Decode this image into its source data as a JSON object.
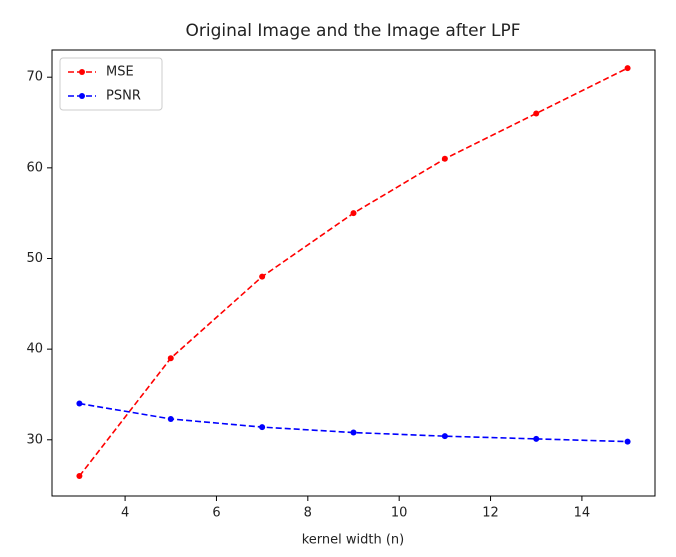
{
  "chart_data": {
    "type": "line",
    "title": "Original Image and the Image after LPF",
    "x_label": "kernel width (n)",
    "x": [
      3,
      5,
      7,
      9,
      11,
      13,
      15
    ],
    "series": [
      {
        "name": "MSE",
        "color": "#ff0000",
        "values": [
          26,
          39,
          48,
          55,
          61,
          66,
          71
        ]
      },
      {
        "name": "PSNR",
        "color": "#0000ff",
        "values": [
          34.0,
          32.3,
          31.4,
          30.8,
          30.4,
          30.1,
          29.8
        ]
      }
    ],
    "xlim": [
      2.4,
      15.6
    ],
    "xticks": [
      4,
      6,
      8,
      10,
      12,
      14
    ],
    "ylim": [
      23.8,
      73.0
    ],
    "yticks": [
      30,
      40,
      50,
      60,
      70
    ],
    "legend": "upper left",
    "grid": false
  }
}
